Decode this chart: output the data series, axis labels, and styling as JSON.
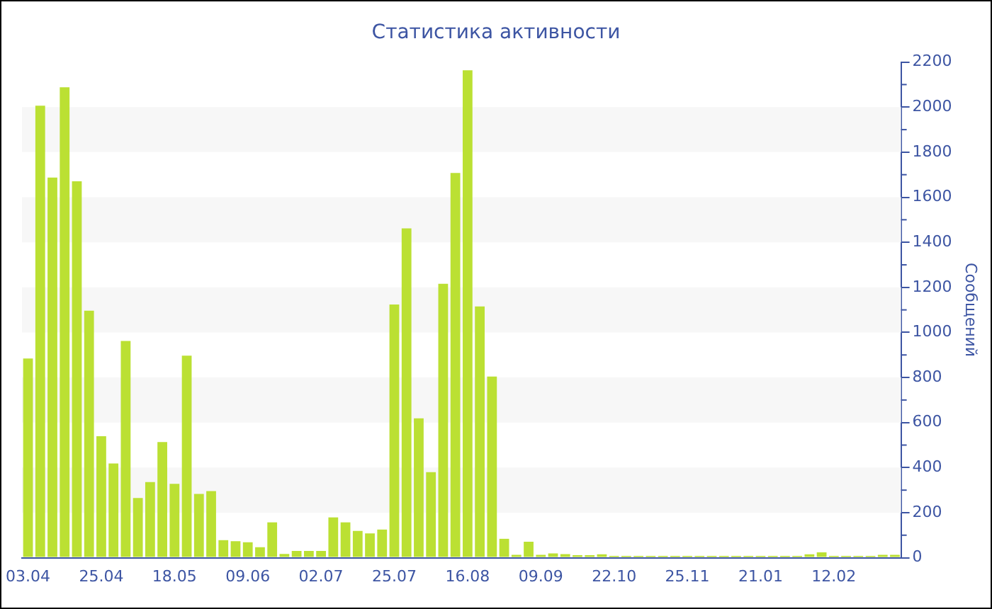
{
  "chart_data": {
    "type": "bar",
    "title": "Статистика активности",
    "ylabel": "Сообщений",
    "categories": [
      "03.04",
      null,
      null,
      null,
      null,
      null,
      "25.04",
      null,
      null,
      null,
      null,
      null,
      "18.05",
      null,
      null,
      null,
      null,
      null,
      "09.06",
      null,
      null,
      null,
      null,
      null,
      "02.07",
      null,
      null,
      null,
      null,
      null,
      "25.07",
      null,
      null,
      null,
      null,
      null,
      "16.08",
      null,
      null,
      null,
      null,
      null,
      "09.09",
      null,
      null,
      null,
      null,
      null,
      "22.10",
      null,
      null,
      null,
      null,
      null,
      "25.11",
      null,
      null,
      null,
      null,
      null,
      "21.01",
      null,
      null,
      null,
      null,
      null,
      "12.02",
      null,
      null,
      null,
      null,
      null
    ],
    "values": [
      884,
      2006,
      1687,
      2088,
      1671,
      1096,
      539,
      418,
      962,
      265,
      336,
      513,
      328,
      897,
      283,
      296,
      78,
      73,
      69,
      47,
      157,
      17,
      30,
      30,
      30,
      179,
      157,
      119,
      108,
      125,
      1124,
      1462,
      619,
      380,
      1216,
      1708,
      2163,
      1115,
      804,
      84,
      13,
      71,
      13,
      19,
      16,
      11,
      11,
      15,
      8,
      8,
      8,
      8,
      8,
      8,
      8,
      8,
      8,
      8,
      8,
      8,
      8,
      8,
      8,
      8,
      15,
      24,
      8,
      8,
      8,
      8,
      13,
      13
    ],
    "color": "#bbe033",
    "ylim": [
      0,
      2200
    ],
    "yticks": [
      0,
      200,
      400,
      600,
      800,
      1000,
      1200,
      1400,
      1600,
      1800,
      2000,
      2200
    ]
  }
}
